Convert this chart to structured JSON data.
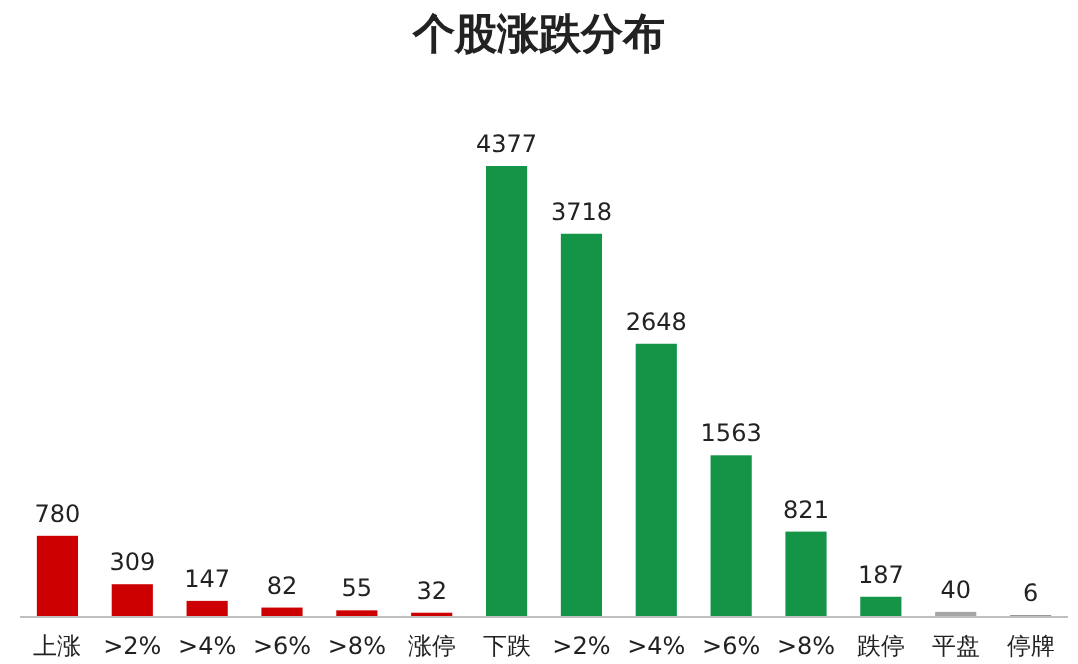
{
  "chart_data": {
    "type": "bar",
    "title": "个股涨跌分布",
    "categories": [
      "上涨",
      ">2%",
      ">4%",
      ">6%",
      ">8%",
      "涨停",
      "下跌",
      ">2%",
      ">4%",
      ">6%",
      ">8%",
      "跌停",
      "平盘",
      "停牌"
    ],
    "values": [
      780,
      309,
      147,
      82,
      55,
      32,
      4377,
      3718,
      2648,
      1563,
      821,
      187,
      40,
      6
    ],
    "colors": [
      "#cc0000",
      "#cc0000",
      "#cc0000",
      "#cc0000",
      "#cc0000",
      "#cc0000",
      "#139447",
      "#139447",
      "#139447",
      "#139447",
      "#139447",
      "#139447",
      "#a6a6a6",
      "#595959"
    ],
    "data_labels": true
  }
}
